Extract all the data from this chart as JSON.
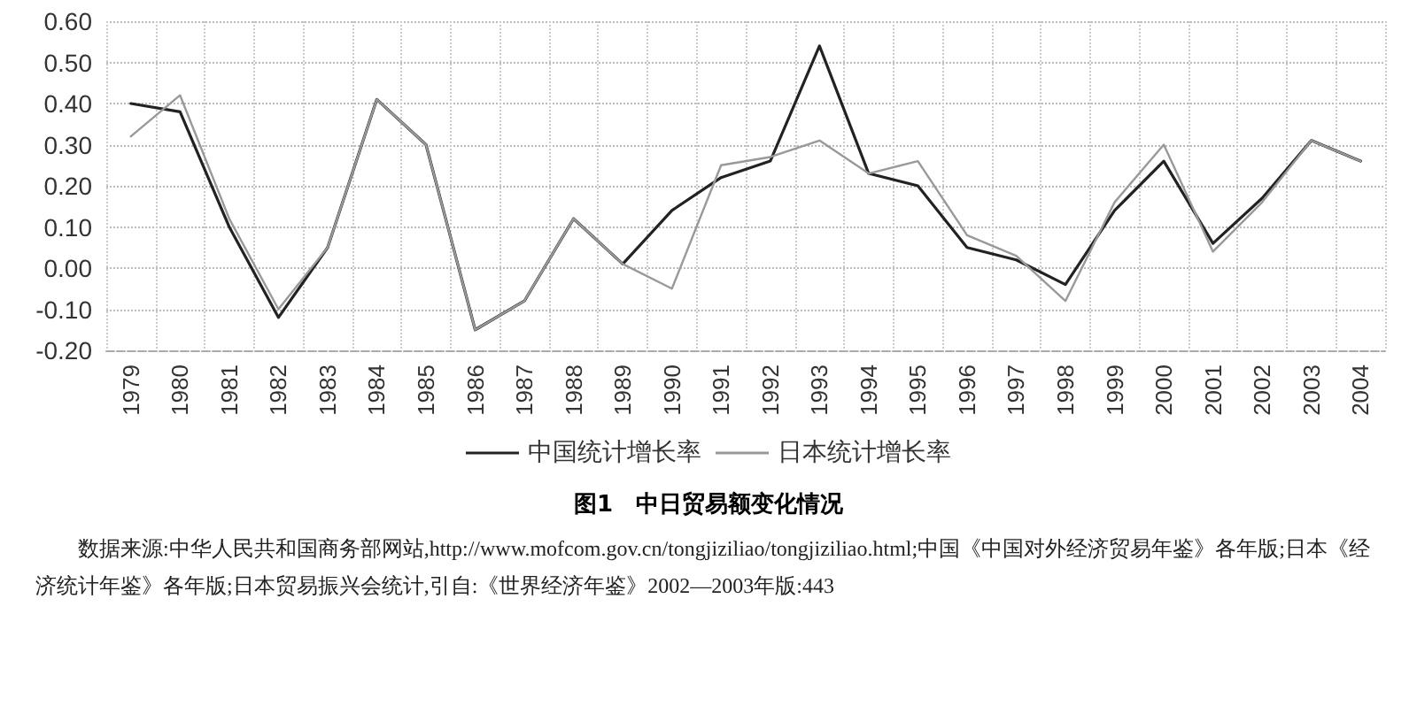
{
  "chart_data": {
    "type": "line",
    "title": "图1　中日贸易额变化情况",
    "categories": [
      "1979",
      "1980",
      "1981",
      "1982",
      "1983",
      "1984",
      "1985",
      "1986",
      "1987",
      "1988",
      "1989",
      "1990",
      "1991",
      "1992",
      "1993",
      "1994",
      "1995",
      "1996",
      "1997",
      "1998",
      "1999",
      "2000",
      "2001",
      "2002",
      "2003",
      "2004"
    ],
    "series": [
      {
        "name": "中国统计增长率",
        "color": "#222222",
        "values": [
          0.4,
          0.38,
          0.1,
          -0.12,
          0.05,
          0.41,
          0.3,
          -0.15,
          -0.08,
          0.12,
          0.01,
          0.14,
          0.22,
          0.26,
          0.54,
          0.23,
          0.2,
          0.05,
          0.02,
          -0.04,
          0.14,
          0.26,
          0.06,
          0.17,
          0.31,
          0.26
        ]
      },
      {
        "name": "日本统计增长率",
        "color": "#999999",
        "values": [
          0.32,
          0.42,
          0.12,
          -0.1,
          0.05,
          0.41,
          0.3,
          -0.15,
          -0.08,
          0.12,
          0.01,
          -0.05,
          0.25,
          0.27,
          0.31,
          0.23,
          0.26,
          0.08,
          0.03,
          -0.08,
          0.16,
          0.3,
          0.04,
          0.16,
          0.31,
          0.26
        ]
      }
    ],
    "ylim": [
      -0.2,
      0.6
    ],
    "yticks": [
      {
        "value": -0.2,
        "label": "-0.20"
      },
      {
        "value": -0.1,
        "label": "-0.10"
      },
      {
        "value": 0,
        "label": "0.00"
      },
      {
        "value": 0.1,
        "label": "0.10"
      },
      {
        "value": 0.2,
        "label": "0.20"
      },
      {
        "value": 0.3,
        "label": "0.30"
      },
      {
        "value": 0.4,
        "label": "0.40"
      },
      {
        "value": 0.5,
        "label": "0.50"
      },
      {
        "value": 0.6,
        "label": "0.60"
      }
    ],
    "grid": true,
    "legend": "bottom",
    "marker": "none",
    "line_style": "solid",
    "annotations": [
      "数据来源:中华人民共和国商务部网站,http://www.mofcom.gov.cn/tongjiziliao/tongjiziliao.html;中国《中国对外经济贸易年鉴》各年版;日本《经济统计年鉴》各年版;日本贸易振兴会统计,引自:《世界经济年鉴》2002—2003年版:443"
    ]
  }
}
